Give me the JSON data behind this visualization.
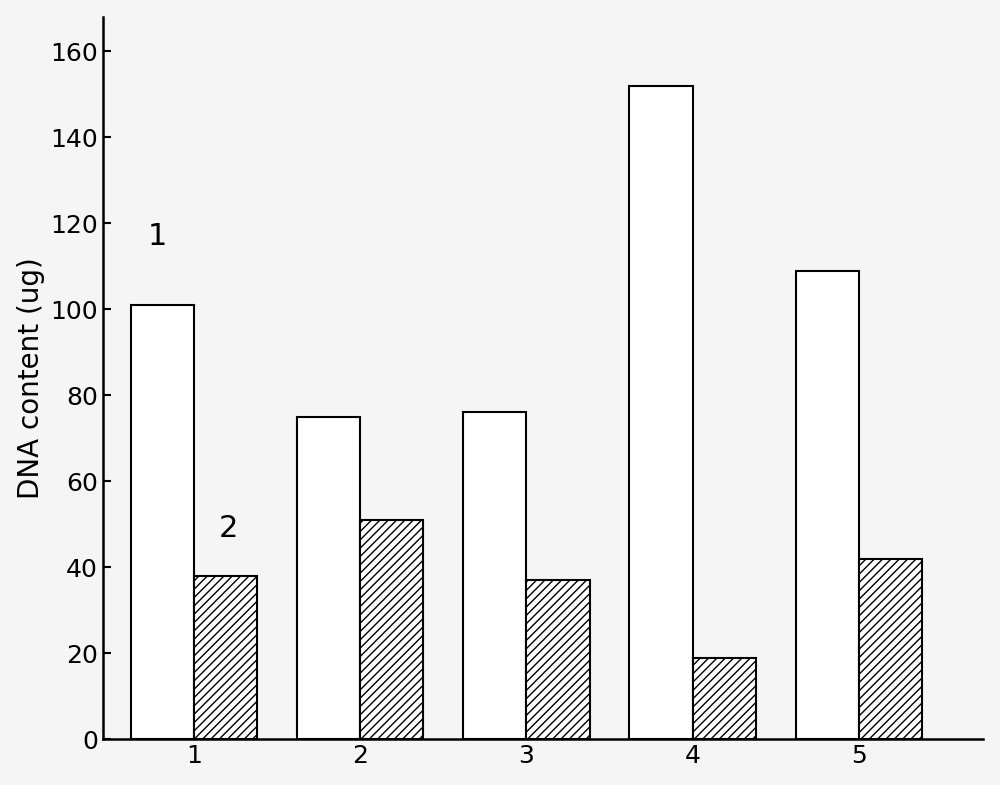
{
  "categories": [
    "1",
    "2",
    "3",
    "4",
    "5"
  ],
  "series1_values": [
    101,
    75,
    76,
    152,
    109
  ],
  "series2_values": [
    38,
    51,
    37,
    19,
    42
  ],
  "series1_label": "1",
  "series2_label": "2",
  "ylabel": "DNA content (ug)",
  "ylim": [
    0,
    168
  ],
  "yticks": [
    0,
    20,
    40,
    60,
    80,
    100,
    120,
    140,
    160
  ],
  "bar_width": 0.38,
  "series1_color": "#ffffff",
  "series1_edgecolor": "#000000",
  "series2_facecolor": "#ffffff",
  "series2_edgecolor": "#000000",
  "hatch_pattern": "////",
  "background_color": "#f5f5f5",
  "figure_background": "#f5f5f5",
  "axis_linewidth": 1.8,
  "bar_linewidth": 1.5,
  "font_size_ticks": 18,
  "font_size_ylabel": 20,
  "font_size_labels": 22,
  "group_centers": [
    1,
    2,
    3,
    4,
    5
  ],
  "xlim": [
    0.45,
    5.75
  ]
}
